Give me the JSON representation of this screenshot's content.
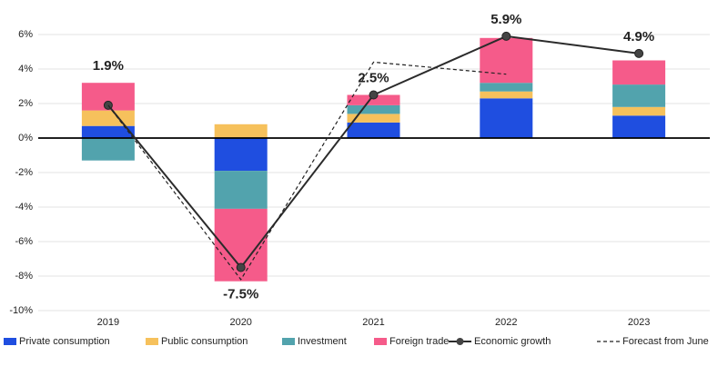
{
  "chart_data": {
    "type": "bar",
    "stacked": true,
    "categories": [
      "2019",
      "2020",
      "2021",
      "2022",
      "2023"
    ],
    "series": [
      {
        "name": "Private consumption",
        "type": "bar",
        "color": "#1f4ee0",
        "values": [
          0.7,
          -1.9,
          0.9,
          2.3,
          1.3
        ]
      },
      {
        "name": "Public consumption",
        "type": "bar",
        "color": "#f6c15c",
        "values": [
          0.9,
          0.8,
          0.5,
          0.4,
          0.5
        ]
      },
      {
        "name": "Investment",
        "type": "bar",
        "color": "#52a3ad",
        "values": [
          -1.3,
          -2.2,
          0.5,
          0.5,
          1.3
        ]
      },
      {
        "name": "Foreign trade",
        "type": "bar",
        "color": "#f55b8a",
        "values": [
          1.6,
          -4.2,
          0.6,
          2.6,
          1.4
        ]
      },
      {
        "name": "Economic growth",
        "type": "line",
        "color": "#2b2b2b",
        "marker": "circle",
        "values": [
          1.9,
          -7.5,
          2.5,
          5.9,
          4.9
        ],
        "value_labels": [
          "1.9%",
          "-7.5%",
          "2.5%",
          "5.9%",
          "4.9%"
        ]
      },
      {
        "name": "Forecast from June",
        "type": "line",
        "color": "#222222",
        "linestyle": "dashed",
        "values": [
          1.9,
          -8.2,
          4.4,
          3.7,
          null
        ]
      }
    ],
    "ylim": [
      -10,
      6
    ],
    "yticks": [
      {
        "value": -10,
        "label": "-10%"
      },
      {
        "value": -8,
        "label": "-8%"
      },
      {
        "value": -6,
        "label": "-6%"
      },
      {
        "value": -4,
        "label": "-4%"
      },
      {
        "value": -2,
        "label": "-2%"
      },
      {
        "value": 0,
        "label": "0%"
      },
      {
        "value": 2,
        "label": "2%"
      },
      {
        "value": 4,
        "label": "4%"
      },
      {
        "value": 6,
        "label": "6%"
      }
    ],
    "grid": true,
    "legend": "bottom"
  }
}
